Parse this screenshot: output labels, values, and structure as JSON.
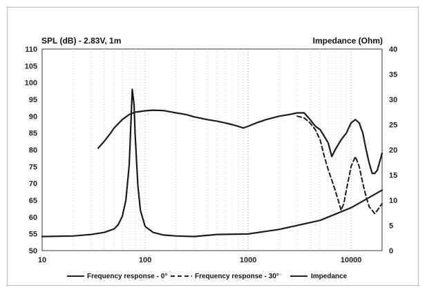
{
  "chart_data": {
    "type": "line",
    "title": "",
    "ylabel_left": "SPL (dB) - 2.83V, 1m",
    "ylabel_right": "Impedance (Ohm)",
    "xscale": "log",
    "xlim": [
      10,
      20000
    ],
    "ylim_left": [
      50,
      110
    ],
    "ylim_right": [
      0,
      40
    ],
    "x_ticks": [
      "10",
      "100",
      "1000",
      "10000"
    ],
    "y_ticks_left": [
      "110",
      "105",
      "100",
      "95",
      "90",
      "85",
      "80",
      "75",
      "70",
      "65",
      "60",
      "55",
      "50"
    ],
    "y_ticks_right": [
      "40",
      "35",
      "30",
      "25",
      "20",
      "15",
      "10",
      "5",
      "0"
    ],
    "grid": "vertical-dotted",
    "legend_position": "bottom",
    "series": [
      {
        "name": "Frequency response - 0°",
        "axis": "left",
        "style": "solid",
        "x": [
          35,
          40,
          45,
          50,
          60,
          70,
          80,
          100,
          120,
          150,
          200,
          250,
          300,
          400,
          500,
          600,
          700,
          800,
          900,
          1000,
          1200,
          1500,
          2000,
          2500,
          3000,
          3500,
          4000,
          4500,
          5000,
          5500,
          6000,
          6500,
          7000,
          8000,
          9000,
          10000,
          11000,
          12000,
          13000,
          14000,
          15000,
          16000,
          17000,
          18000,
          20000
        ],
        "y": [
          80.5,
          82.5,
          84.5,
          86.5,
          89,
          90.5,
          91.2,
          91.6,
          91.8,
          91.7,
          91,
          90.5,
          89.8,
          89,
          88.5,
          88,
          87.5,
          87,
          86.5,
          87,
          88,
          89,
          90,
          90.5,
          91,
          91,
          89,
          87,
          86,
          84,
          82,
          78,
          80,
          83,
          85,
          88,
          89,
          88,
          85,
          80,
          76,
          73,
          73,
          74,
          79
        ]
      },
      {
        "name": "Frequency response - 30°",
        "axis": "left",
        "style": "dashed",
        "x": [
          3000,
          3500,
          4000,
          4500,
          5000,
          5500,
          6000,
          6500,
          7000,
          7500,
          8000,
          8500,
          9000,
          10000,
          11000,
          12000,
          13000,
          14000,
          15000,
          16000,
          17000,
          18000,
          20000
        ],
        "y": [
          90,
          89.5,
          88,
          86,
          83,
          78,
          74,
          71,
          68,
          65,
          62,
          64,
          68,
          75,
          78,
          75,
          70,
          66,
          63,
          62,
          61,
          62,
          64
        ]
      },
      {
        "name": "Impedance",
        "axis": "right",
        "style": "solid",
        "x": [
          10,
          20,
          30,
          40,
          50,
          55,
          60,
          65,
          70,
          73,
          75,
          78,
          80,
          85,
          90,
          100,
          120,
          150,
          200,
          300,
          500,
          1000,
          2000,
          5000,
          10000,
          20000
        ],
        "y": [
          2.8,
          2.9,
          3.2,
          3.6,
          4.3,
          5.2,
          6.8,
          10,
          17,
          26,
          32,
          29,
          23,
          13,
          8,
          4.8,
          3.6,
          3.1,
          2.9,
          2.8,
          3.2,
          3.3,
          4.2,
          6,
          8.5,
          12
        ]
      }
    ]
  }
}
